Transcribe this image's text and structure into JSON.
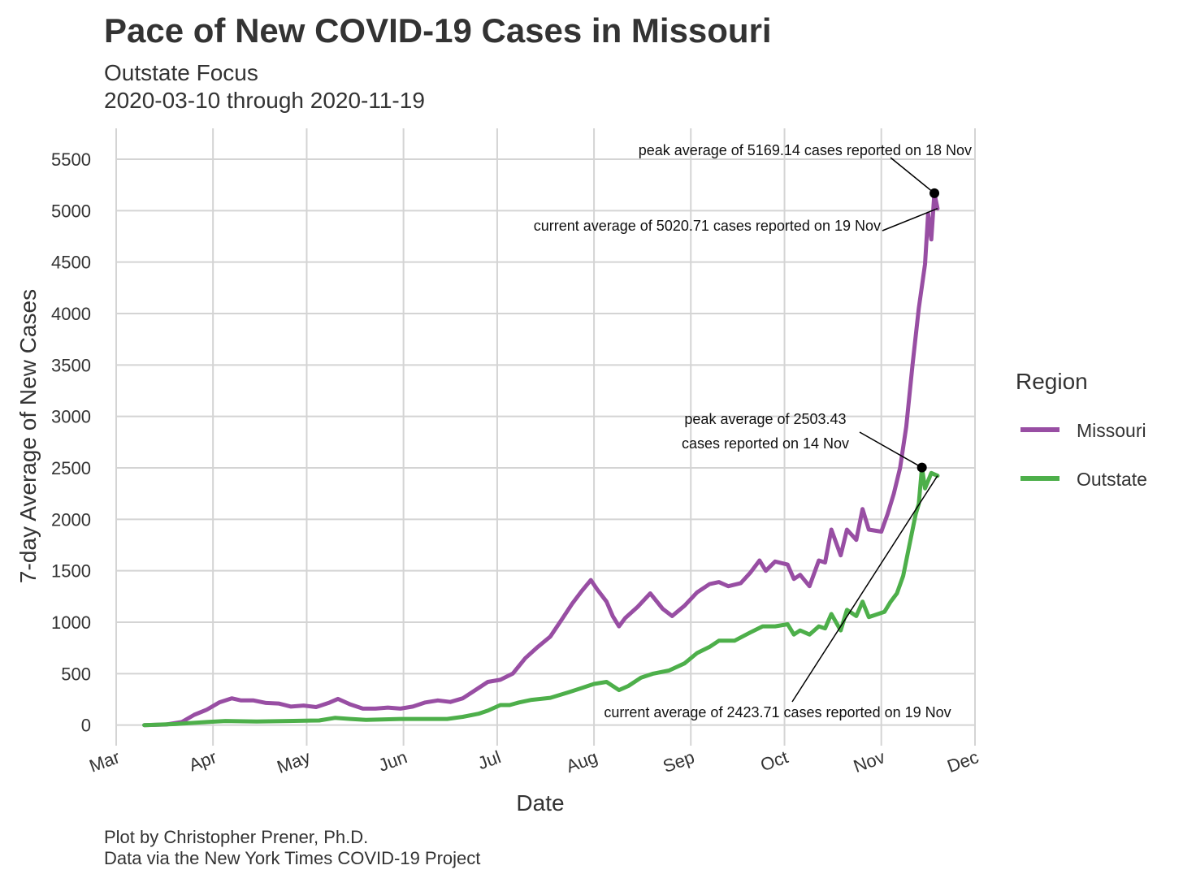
{
  "title": "Pace of New COVID-19 Cases in Missouri",
  "subtitle": "Outstate Focus",
  "date_range": "2020-03-10 through 2020-11-19",
  "caption_line1": "Plot by Christopher Prener, Ph.D.",
  "caption_line2": "Data via the New York Times COVID-19 Project",
  "colors": {
    "Missouri": "#984ea3",
    "Outstate": "#4daf4a",
    "grid": "#d4d4d4",
    "text": "#333333"
  },
  "chart_data": {
    "type": "line",
    "xlabel": "Date",
    "ylabel": "7-day Average of New Cases",
    "xlim": [
      "2020-03-01",
      "2020-12-01"
    ],
    "ylim": [
      -200,
      5800
    ],
    "grid": true,
    "legend_title": "Region",
    "legend_position": "right",
    "x_ticks": [
      {
        "date": "2020-03-01",
        "label": "Mar"
      },
      {
        "date": "2020-04-01",
        "label": "Apr"
      },
      {
        "date": "2020-05-01",
        "label": "May"
      },
      {
        "date": "2020-06-01",
        "label": "Jun"
      },
      {
        "date": "2020-07-01",
        "label": "Jul"
      },
      {
        "date": "2020-08-01",
        "label": "Aug"
      },
      {
        "date": "2020-09-01",
        "label": "Sep"
      },
      {
        "date": "2020-10-01",
        "label": "Oct"
      },
      {
        "date": "2020-11-01",
        "label": "Nov"
      },
      {
        "date": "2020-12-01",
        "label": "Dec"
      }
    ],
    "y_ticks": [
      0,
      500,
      1000,
      1500,
      2000,
      2500,
      3000,
      3500,
      4000,
      4500,
      5000,
      5500
    ],
    "series": [
      {
        "name": "Missouri",
        "points": [
          [
            "2020-03-10",
            0
          ],
          [
            "2020-03-17",
            5
          ],
          [
            "2020-03-22",
            30
          ],
          [
            "2020-03-26",
            100
          ],
          [
            "2020-03-30",
            150
          ],
          [
            "2020-04-03",
            220
          ],
          [
            "2020-04-07",
            260
          ],
          [
            "2020-04-10",
            240
          ],
          [
            "2020-04-14",
            240
          ],
          [
            "2020-04-18",
            215
          ],
          [
            "2020-04-22",
            210
          ],
          [
            "2020-04-26",
            180
          ],
          [
            "2020-04-30",
            190
          ],
          [
            "2020-05-04",
            175
          ],
          [
            "2020-05-08",
            215
          ],
          [
            "2020-05-11",
            255
          ],
          [
            "2020-05-15",
            200
          ],
          [
            "2020-05-19",
            160
          ],
          [
            "2020-05-23",
            160
          ],
          [
            "2020-05-27",
            170
          ],
          [
            "2020-05-31",
            160
          ],
          [
            "2020-06-04",
            180
          ],
          [
            "2020-06-08",
            220
          ],
          [
            "2020-06-12",
            240
          ],
          [
            "2020-06-16",
            225
          ],
          [
            "2020-06-20",
            260
          ],
          [
            "2020-06-24",
            340
          ],
          [
            "2020-06-28",
            420
          ],
          [
            "2020-07-02",
            440
          ],
          [
            "2020-07-06",
            500
          ],
          [
            "2020-07-10",
            650
          ],
          [
            "2020-07-14",
            760
          ],
          [
            "2020-07-18",
            860
          ],
          [
            "2020-07-22",
            1040
          ],
          [
            "2020-07-25",
            1180
          ],
          [
            "2020-07-28",
            1300
          ],
          [
            "2020-07-31",
            1410
          ],
          [
            "2020-08-02",
            1320
          ],
          [
            "2020-08-05",
            1200
          ],
          [
            "2020-08-07",
            1060
          ],
          [
            "2020-08-09",
            960
          ],
          [
            "2020-08-11",
            1040
          ],
          [
            "2020-08-15",
            1150
          ],
          [
            "2020-08-19",
            1280
          ],
          [
            "2020-08-23",
            1130
          ],
          [
            "2020-08-26",
            1060
          ],
          [
            "2020-08-30",
            1160
          ],
          [
            "2020-09-03",
            1290
          ],
          [
            "2020-09-07",
            1370
          ],
          [
            "2020-09-10",
            1390
          ],
          [
            "2020-09-13",
            1350
          ],
          [
            "2020-09-17",
            1380
          ],
          [
            "2020-09-20",
            1480
          ],
          [
            "2020-09-23",
            1600
          ],
          [
            "2020-09-25",
            1500
          ],
          [
            "2020-09-28",
            1590
          ],
          [
            "2020-10-02",
            1560
          ],
          [
            "2020-10-04",
            1420
          ],
          [
            "2020-10-06",
            1460
          ],
          [
            "2020-10-09",
            1350
          ],
          [
            "2020-10-12",
            1600
          ],
          [
            "2020-10-14",
            1580
          ],
          [
            "2020-10-16",
            1900
          ],
          [
            "2020-10-19",
            1650
          ],
          [
            "2020-10-21",
            1900
          ],
          [
            "2020-10-24",
            1800
          ],
          [
            "2020-10-26",
            2100
          ],
          [
            "2020-10-28",
            1900
          ],
          [
            "2020-11-01",
            1880
          ],
          [
            "2020-11-03",
            2050
          ],
          [
            "2020-11-05",
            2250
          ],
          [
            "2020-11-07",
            2500
          ],
          [
            "2020-11-09",
            2900
          ],
          [
            "2020-11-11",
            3500
          ],
          [
            "2020-11-13",
            4050
          ],
          [
            "2020-11-15",
            4480
          ],
          [
            "2020-11-16",
            4970
          ],
          [
            "2020-11-17",
            4720
          ],
          [
            "2020-11-18",
            5169.14
          ],
          [
            "2020-11-19",
            5020.71
          ]
        ]
      },
      {
        "name": "Outstate",
        "points": [
          [
            "2020-03-10",
            0
          ],
          [
            "2020-03-20",
            10
          ],
          [
            "2020-03-30",
            30
          ],
          [
            "2020-04-05",
            40
          ],
          [
            "2020-04-15",
            35
          ],
          [
            "2020-04-25",
            40
          ],
          [
            "2020-05-05",
            45
          ],
          [
            "2020-05-10",
            70
          ],
          [
            "2020-05-15",
            60
          ],
          [
            "2020-05-20",
            50
          ],
          [
            "2020-05-25",
            55
          ],
          [
            "2020-05-31",
            60
          ],
          [
            "2020-06-10",
            60
          ],
          [
            "2020-06-15",
            60
          ],
          [
            "2020-06-20",
            80
          ],
          [
            "2020-06-25",
            110
          ],
          [
            "2020-06-28",
            140
          ],
          [
            "2020-07-02",
            195
          ],
          [
            "2020-07-05",
            195
          ],
          [
            "2020-07-08",
            220
          ],
          [
            "2020-07-12",
            245
          ],
          [
            "2020-07-18",
            265
          ],
          [
            "2020-07-24",
            320
          ],
          [
            "2020-07-28",
            360
          ],
          [
            "2020-08-01",
            400
          ],
          [
            "2020-08-05",
            420
          ],
          [
            "2020-08-09",
            340
          ],
          [
            "2020-08-12",
            380
          ],
          [
            "2020-08-16",
            460
          ],
          [
            "2020-08-20",
            500
          ],
          [
            "2020-08-25",
            530
          ],
          [
            "2020-08-30",
            600
          ],
          [
            "2020-09-03",
            700
          ],
          [
            "2020-09-07",
            760
          ],
          [
            "2020-09-10",
            820
          ],
          [
            "2020-09-15",
            820
          ],
          [
            "2020-09-20",
            900
          ],
          [
            "2020-09-24",
            960
          ],
          [
            "2020-09-28",
            960
          ],
          [
            "2020-10-02",
            980
          ],
          [
            "2020-10-04",
            880
          ],
          [
            "2020-10-06",
            920
          ],
          [
            "2020-10-09",
            880
          ],
          [
            "2020-10-12",
            960
          ],
          [
            "2020-10-14",
            940
          ],
          [
            "2020-10-16",
            1080
          ],
          [
            "2020-10-19",
            920
          ],
          [
            "2020-10-21",
            1120
          ],
          [
            "2020-10-24",
            1060
          ],
          [
            "2020-10-26",
            1200
          ],
          [
            "2020-10-28",
            1050
          ],
          [
            "2020-11-02",
            1100
          ],
          [
            "2020-11-04",
            1200
          ],
          [
            "2020-11-06",
            1280
          ],
          [
            "2020-11-08",
            1450
          ],
          [
            "2020-11-10",
            1750
          ],
          [
            "2020-11-12",
            2050
          ],
          [
            "2020-11-13",
            2150
          ],
          [
            "2020-11-14",
            2503.43
          ],
          [
            "2020-11-15",
            2300
          ],
          [
            "2020-11-17",
            2450
          ],
          [
            "2020-11-19",
            2423.71
          ]
        ]
      }
    ],
    "annotations": [
      {
        "text": "peak average of 5169.14 cases reported on 18 Nov",
        "date": "2020-11-18",
        "value": 5169.14,
        "marker": true
      },
      {
        "text": "current average of 5020.71 cases reported on 19 Nov",
        "date": "2020-11-19",
        "value": 5020.71,
        "marker": false
      },
      {
        "text": "peak average of 2503.43",
        "text2": "cases reported on 14 Nov",
        "date": "2020-11-14",
        "value": 2503.43,
        "marker": true
      },
      {
        "text": "current average of 2423.71 cases reported on 19 Nov",
        "date": "2020-11-19",
        "value": 2423.71,
        "marker": false
      }
    ]
  }
}
